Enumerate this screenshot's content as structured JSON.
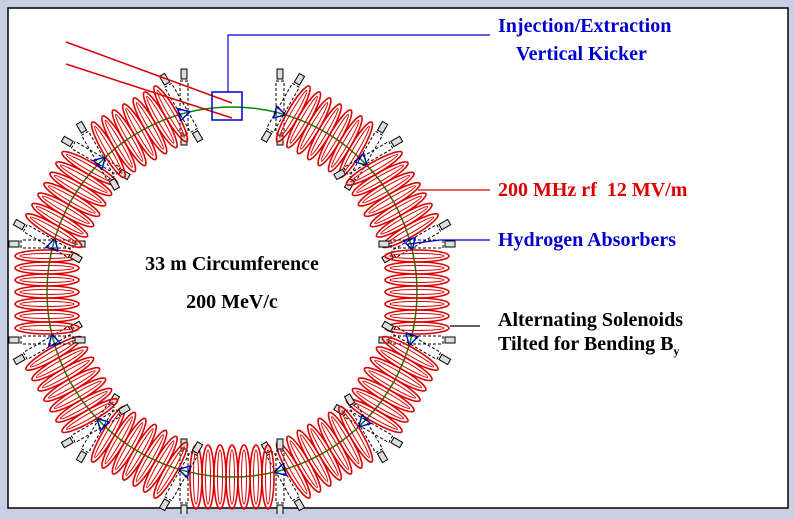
{
  "diagram": {
    "center_label": "33 m Circumference",
    "momentum_label": "200 MeV/c",
    "labels": [
      {
        "lines": [
          "Injection/Extraction",
          "Vertical Kicker"
        ]
      },
      {
        "lines": [
          "200 MHz rf  12 MV/m"
        ]
      },
      {
        "lines": [
          "Hydrogen Absorbers"
        ]
      },
      {
        "lines": [
          "Alternating Solenoids",
          "Tilted for Bending B"
        ],
        "subscript": "y"
      }
    ]
  }
}
